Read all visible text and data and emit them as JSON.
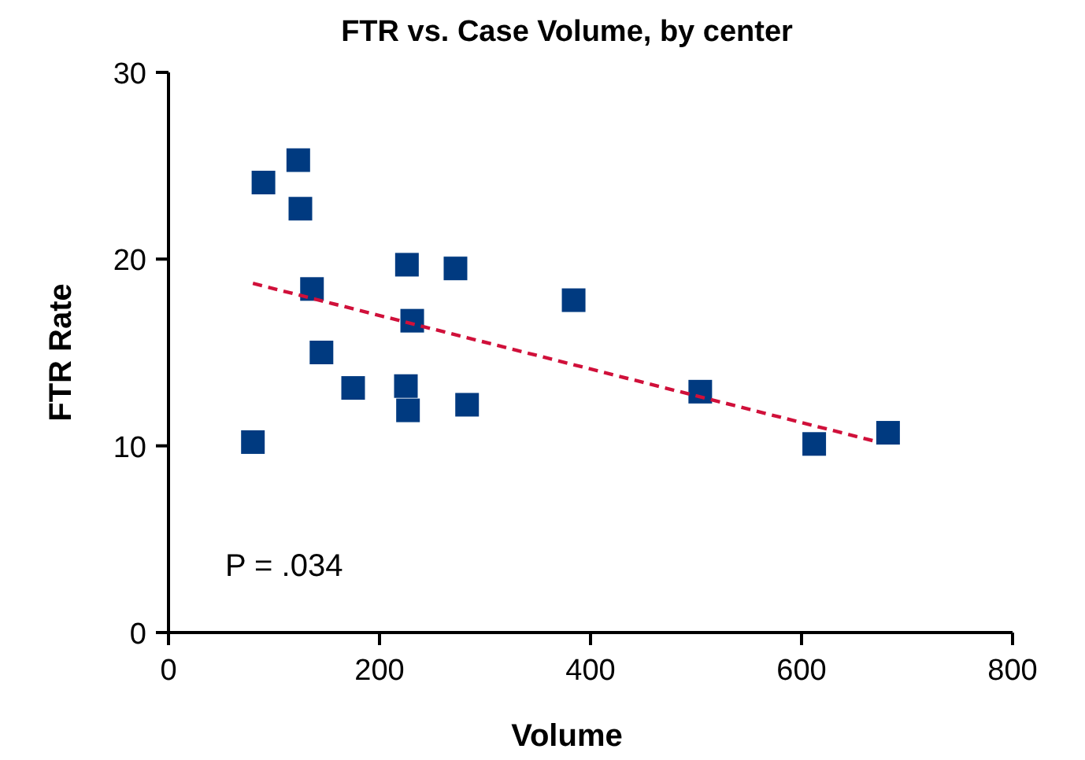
{
  "chart_data": {
    "type": "scatter",
    "title": "FTR vs. Case Volume, by center",
    "xlabel": "Volume",
    "ylabel": "FTR Rate",
    "xlim": [
      0,
      800
    ],
    "xticks": [
      0,
      200,
      400,
      600,
      800
    ],
    "ylim": [
      0,
      30
    ],
    "yticks": [
      0,
      10,
      20,
      30
    ],
    "grid": false,
    "annotations": [
      "P = .034"
    ],
    "series": [
      {
        "marker": "square",
        "color": "#003a80",
        "x": [
          80,
          90,
          123,
          125,
          136,
          145,
          175,
          226,
          225,
          227,
          231,
          272,
          283,
          384,
          504,
          612,
          682
        ],
        "values": [
          10.2,
          24.1,
          25.3,
          22.7,
          18.4,
          15.0,
          13.1,
          19.7,
          13.2,
          11.9,
          16.7,
          19.5,
          12.2,
          17.8,
          12.9,
          10.1,
          10.7
        ]
      },
      {
        "type": "line",
        "color": "#d0103a",
        "line_style": "dashed",
        "x": [
          80,
          673
        ],
        "values": [
          18.7,
          10.2
        ]
      }
    ]
  }
}
